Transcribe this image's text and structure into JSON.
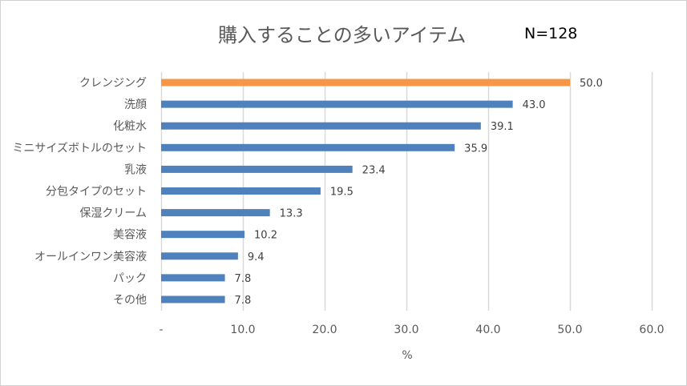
{
  "chart_data": {
    "type": "bar",
    "orientation": "horizontal",
    "title": "購入することの多いアイテム",
    "annotation": "N=128",
    "categories": [
      "クレンジング",
      "洗顔",
      "化粧水",
      "ミニサイズボトルのセット",
      "乳液",
      "分包タイプのセット",
      "保湿クリーム",
      "美容液",
      "オールインワン美容液",
      "パック",
      "その他"
    ],
    "values": [
      50.0,
      43.0,
      39.1,
      35.9,
      23.4,
      19.5,
      13.3,
      10.2,
      9.4,
      7.8,
      7.8
    ],
    "data_labels": [
      "50.0",
      "43.0",
      "39.1",
      "35.9",
      "23.4",
      "19.5",
      "13.3",
      "10.2",
      "9.4",
      "7.8",
      "7.8"
    ],
    "highlight_index": 0,
    "colors": {
      "default": "#4f81bd",
      "highlight": "#f79646",
      "grid": "#d9d9d9"
    },
    "xlabel": "%",
    "ylabel": "",
    "xlim": [
      0,
      60
    ],
    "xticks": [
      0,
      10,
      20,
      30,
      40,
      50,
      60
    ],
    "xtick_labels": [
      "-",
      "10.0",
      "20.0",
      "30.0",
      "40.0",
      "50.0",
      "60.0"
    ],
    "grid": true,
    "legend": "none"
  }
}
